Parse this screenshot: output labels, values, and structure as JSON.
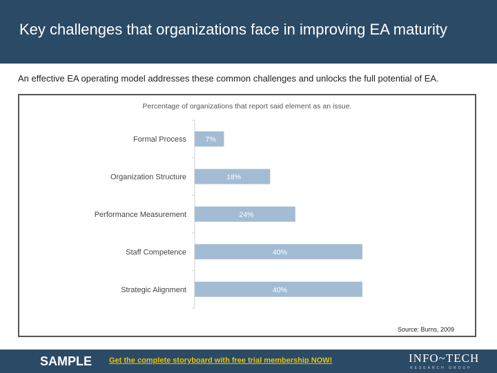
{
  "header": {
    "title": "Key challenges that organizations face in improving EA maturity"
  },
  "subtitle": "An effective EA operating model addresses these common challenges and unlocks the full potential of EA.",
  "chart_data": {
    "type": "bar",
    "orientation": "horizontal",
    "title": "Percentage of organizations that report said element as an issue.",
    "categories": [
      "Formal Process",
      "Organization Structure",
      "Performance Measurement",
      "Staff Competence",
      "Strategic Alignment"
    ],
    "values": [
      7,
      18,
      24,
      40,
      40
    ],
    "data_labels": [
      "7%",
      "18%",
      "24%",
      "40%",
      "40%"
    ],
    "unit": "%",
    "xlim": [
      0,
      40
    ],
    "bar_color": "#a3bcd4",
    "grid": false,
    "source": "Source: Burns, 2009"
  },
  "footer": {
    "sample_label": "SAMPLE",
    "cta_text": "Get the complete storyboard with free trial membership NOW!",
    "brand_name": "INFO~TECH",
    "brand_sub": "RESEARCH GROUP",
    "background_color": "#2b4a66",
    "cta_color": "#e8c200"
  }
}
